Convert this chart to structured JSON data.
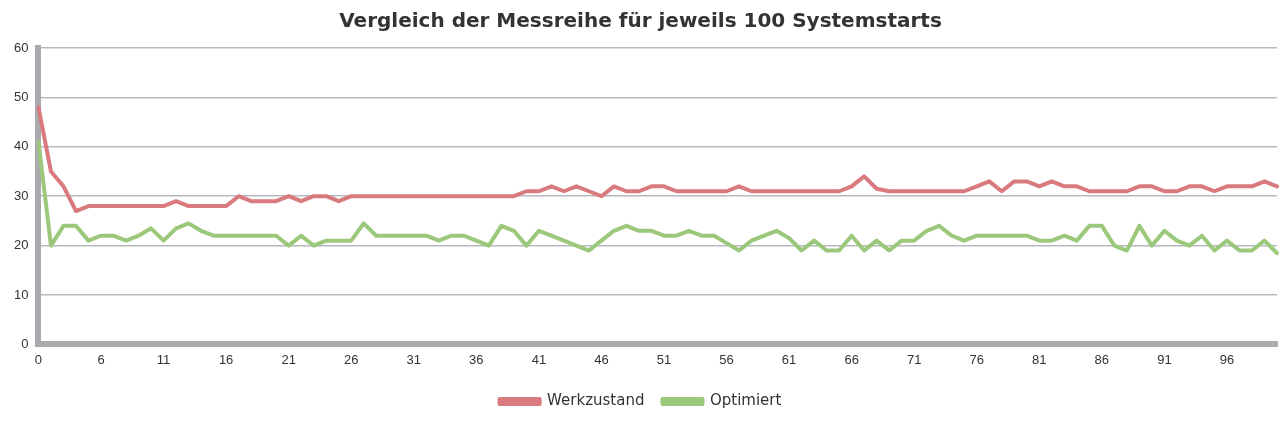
{
  "chart_data": {
    "type": "line",
    "title": "Vergleich der Messreihe für jeweils 100 Systemstarts",
    "categories": [
      "0",
      null,
      null,
      null,
      null,
      "6",
      null,
      null,
      null,
      null,
      "11",
      null,
      null,
      null,
      null,
      "16",
      null,
      null,
      null,
      null,
      "21",
      null,
      null,
      null,
      null,
      "26",
      null,
      null,
      null,
      null,
      "31",
      null,
      null,
      null,
      null,
      "36",
      null,
      null,
      null,
      null,
      "41",
      null,
      null,
      null,
      null,
      "46",
      null,
      null,
      null,
      null,
      "51",
      null,
      null,
      null,
      null,
      "56",
      null,
      null,
      null,
      null,
      "61",
      null,
      null,
      null,
      null,
      "66",
      null,
      null,
      null,
      null,
      "71",
      null,
      null,
      null,
      null,
      "76",
      null,
      null,
      null,
      null,
      "81",
      null,
      null,
      null,
      null,
      "86",
      null,
      null,
      null,
      null,
      "91",
      null,
      null,
      null,
      null,
      "96",
      null,
      null,
      null,
      null
    ],
    "series": [
      {
        "name": "Werkzustand",
        "color": "#d97a7e",
        "values": [
          48,
          35,
          32,
          27,
          28,
          28,
          28,
          28,
          28,
          28,
          28,
          29,
          28,
          28,
          28,
          28,
          30,
          29,
          29,
          29,
          30,
          29,
          30,
          30,
          29,
          30,
          30,
          30,
          30,
          30,
          30,
          30,
          30,
          30,
          30,
          30,
          30,
          30,
          30,
          31,
          31,
          32,
          31,
          32,
          31,
          30,
          32,
          31,
          31,
          32,
          32,
          31,
          31,
          31,
          31,
          31,
          32,
          31,
          31,
          31,
          31,
          31,
          31,
          31,
          31,
          32,
          34,
          31.5,
          31,
          31,
          31,
          31,
          31,
          31,
          31,
          32,
          33,
          31,
          33,
          33,
          32,
          33,
          32,
          32,
          31,
          31,
          31,
          31,
          32,
          32,
          31,
          31,
          32,
          32,
          31,
          32,
          32,
          32,
          33,
          32
        ]
      },
      {
        "name": "Optimiert",
        "color": "#9cc87c",
        "values": [
          41,
          20,
          24,
          24,
          21,
          22,
          22,
          21,
          22,
          23.5,
          21,
          23.5,
          24.5,
          23,
          22,
          22,
          22,
          22,
          22,
          22,
          20,
          22,
          20,
          21,
          21,
          21,
          24.5,
          22,
          22,
          22,
          22,
          22,
          21,
          22,
          22,
          21,
          20,
          24,
          23,
          20,
          23,
          22,
          21,
          20,
          19,
          21,
          23,
          24,
          23,
          23,
          22,
          22,
          23,
          22,
          22,
          20.5,
          19,
          21,
          22,
          23,
          21.5,
          19,
          21,
          19,
          19,
          22,
          19,
          21,
          19,
          21,
          21,
          23,
          24,
          22,
          21,
          22,
          22,
          22,
          22,
          22,
          21,
          21,
          22,
          21,
          24,
          24,
          20,
          19,
          24,
          20,
          23,
          21,
          20,
          22,
          19,
          21,
          19,
          19,
          21,
          18.5
        ]
      }
    ],
    "ylim": [
      0,
      60
    ],
    "yticks": [
      0,
      10,
      20,
      30,
      40,
      50,
      60
    ],
    "grid": "y",
    "legend": "bottom",
    "marker": "none",
    "line_style": "solid"
  }
}
